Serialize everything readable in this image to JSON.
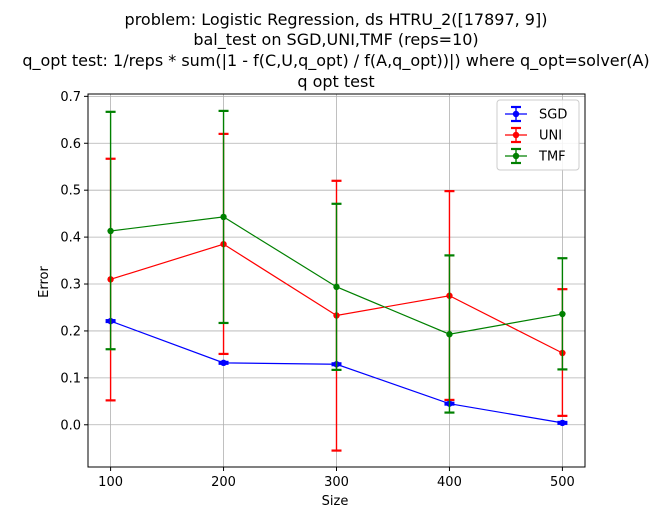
{
  "chart_data": {
    "type": "line",
    "title_lines": [
      "problem: Logistic Regression, ds HTRU_2([17897, 9])",
      "bal_test on SGD,UNI,TMF (reps=10)",
      "q_opt test: 1/reps * sum(|1 - f(C,U,q_opt) / f(A,q_opt))|) where q_opt=solver(A)",
      "q opt test"
    ],
    "xlabel": "Size",
    "ylabel": "Error",
    "x": [
      100,
      200,
      300,
      400,
      500
    ],
    "xticks": [
      100,
      200,
      300,
      400,
      500
    ],
    "yticks": [
      0.0,
      0.1,
      0.2,
      0.3,
      0.4,
      0.5,
      0.6,
      0.7
    ],
    "ytick_labels": [
      "0.0",
      "0.1",
      "0.2",
      "0.3",
      "0.4",
      "0.5",
      "0.6",
      "0.7"
    ],
    "xlim": [
      80,
      520
    ],
    "ylim": [
      -0.09,
      0.705
    ],
    "grid": true,
    "legend_position": "top-right",
    "series": [
      {
        "name": "SGD",
        "color": "#0000ff",
        "values": [
          0.221,
          0.132,
          0.129,
          0.045,
          0.004
        ],
        "err_low": [
          0.219,
          0.13,
          0.127,
          0.043,
          0.002
        ],
        "err_high": [
          0.223,
          0.134,
          0.131,
          0.047,
          0.006
        ]
      },
      {
        "name": "UNI",
        "color": "#ff0000",
        "values": [
          0.31,
          0.385,
          0.233,
          0.275,
          0.153
        ],
        "err_low": [
          0.052,
          0.151,
          -0.055,
          0.053,
          0.019
        ],
        "err_high": [
          0.567,
          0.62,
          0.52,
          0.498,
          0.289
        ]
      },
      {
        "name": "TMF",
        "color": "#008000",
        "values": [
          0.413,
          0.443,
          0.294,
          0.193,
          0.236
        ],
        "err_low": [
          0.161,
          0.217,
          0.117,
          0.026,
          0.118
        ],
        "err_high": [
          0.667,
          0.669,
          0.471,
          0.361,
          0.355
        ]
      }
    ]
  }
}
